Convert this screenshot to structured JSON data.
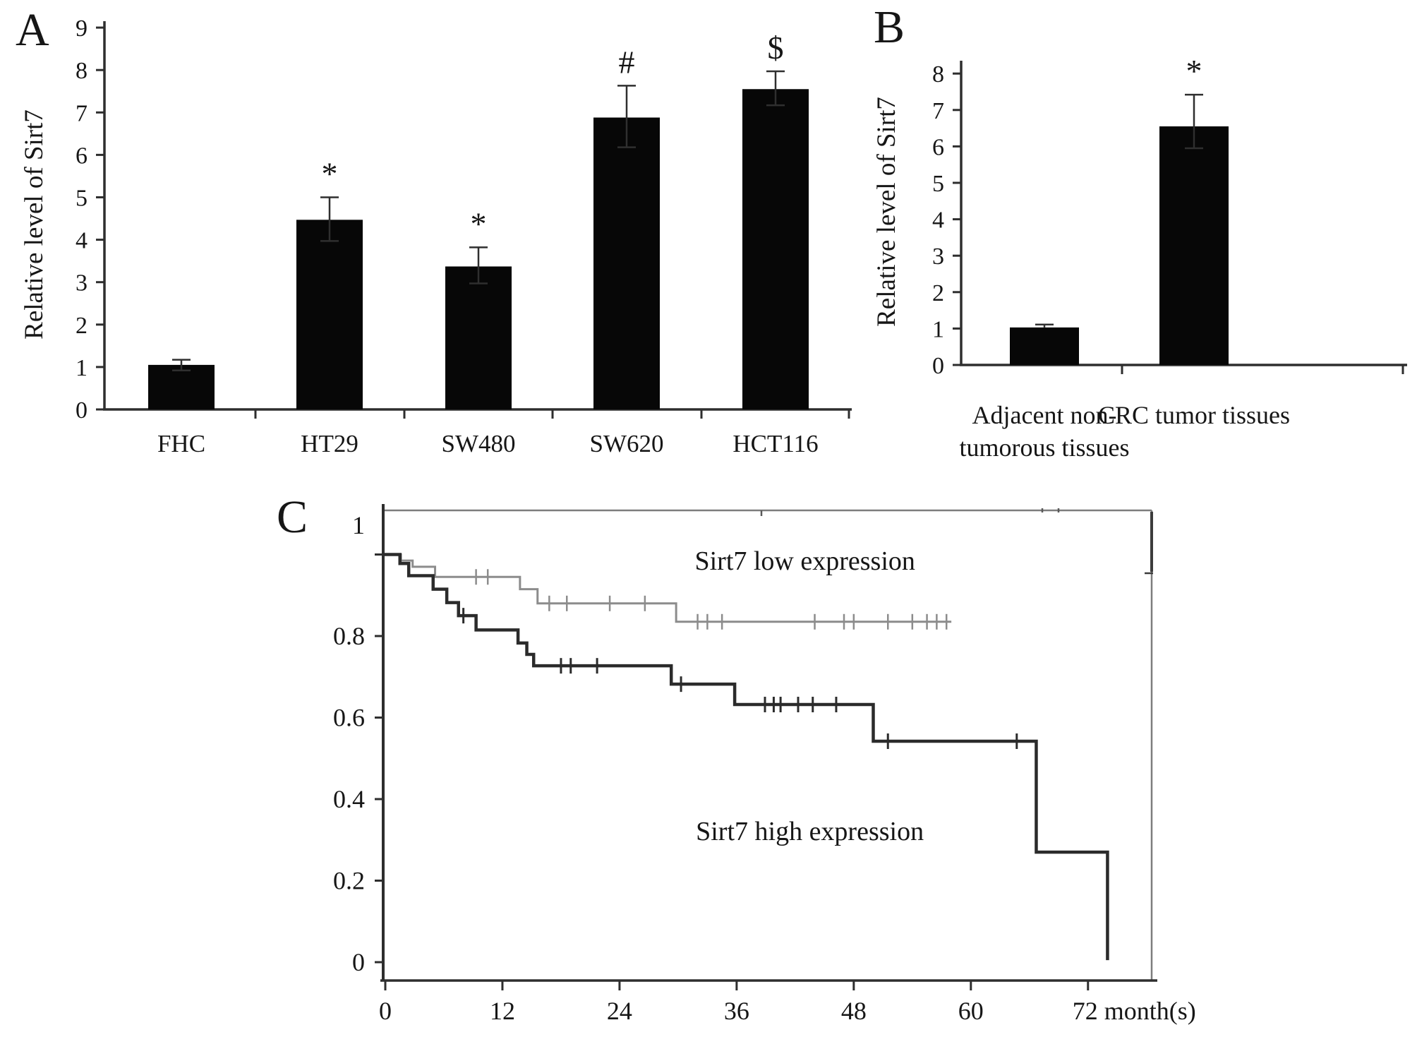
{
  "figure": {
    "panels": [
      {
        "id": "A",
        "label": "A"
      },
      {
        "id": "B",
        "label": "B"
      },
      {
        "id": "C",
        "label": "C"
      }
    ]
  },
  "colors": {
    "background": "#ffffff",
    "bar": "#070707",
    "axis": "#2e2e2e",
    "frame": "#7d7d7d",
    "error": "#2f2f2f",
    "text": "#161616",
    "low_curve": "#8c8c8c",
    "high_curve": "#2b2b2b"
  },
  "chart_data": [
    {
      "id": "panel-a",
      "type": "bar",
      "title": "",
      "xlabel": "",
      "ylabel": "Relative level of Sirt7",
      "categories": [
        "FHC",
        "HT29",
        "SW480",
        "SW620",
        "HCT116"
      ],
      "values": [
        1.05,
        4.47,
        3.37,
        6.88,
        7.55
      ],
      "errors_up": [
        0.12,
        0.53,
        0.45,
        0.75,
        0.42
      ],
      "errors_down": [
        0.13,
        0.5,
        0.4,
        0.7,
        0.38
      ],
      "annotations": [
        "",
        "*",
        "*",
        "#",
        "$"
      ],
      "ylim": [
        0,
        9
      ],
      "yticks": [
        0,
        1,
        2,
        3,
        4,
        5,
        6,
        7,
        8,
        9
      ],
      "grid": false,
      "legend": "none"
    },
    {
      "id": "panel-b",
      "type": "bar",
      "title": "",
      "xlabel": "",
      "ylabel": "Relative level of Sirt7",
      "categories": [
        "Adjacent non-\ntumorous tissues",
        "CRC tumor tissues"
      ],
      "values": [
        1.03,
        6.55
      ],
      "errors_up": [
        0.08,
        0.87
      ],
      "errors_down": [
        0,
        0.6
      ],
      "annotations": [
        "",
        "*"
      ],
      "ylim": [
        0,
        8
      ],
      "yticks": [
        0,
        1,
        2,
        3,
        4,
        5,
        6,
        7,
        8
      ],
      "grid": false,
      "legend": "none"
    },
    {
      "id": "panel-c",
      "type": "line",
      "subtype": "kaplan-meier",
      "title": "",
      "xlabel": "month(s)",
      "xticks": [
        0,
        12,
        24,
        36,
        48,
        60,
        72
      ],
      "xlim": [
        0,
        78
      ],
      "ylim": [
        0,
        1
      ],
      "yticks": [
        0,
        0.2,
        0.4,
        0.6,
        0.8,
        1
      ],
      "grid": false,
      "legend": "inline-labels",
      "series": [
        {
          "name": "Sirt7 low expression",
          "steps": [
            [
              0,
              1
            ],
            [
              1.6,
              0.985
            ],
            [
              2.8,
              0.97
            ],
            [
              5.1,
              0.945
            ],
            [
              13.8,
              0.915
            ],
            [
              15.6,
              0.88
            ],
            [
              29.8,
              0.835
            ]
          ],
          "end_month": 58,
          "censors": [
            [
              9.3,
              0.945
            ],
            [
              10.5,
              0.945
            ],
            [
              16.8,
              0.88
            ],
            [
              18.6,
              0.88
            ],
            [
              23,
              0.88
            ],
            [
              26.6,
              0.88
            ],
            [
              32,
              0.835
            ],
            [
              33,
              0.835
            ],
            [
              34.5,
              0.835
            ],
            [
              44,
              0.835
            ],
            [
              47,
              0.835
            ],
            [
              48,
              0.835
            ],
            [
              51.5,
              0.835
            ],
            [
              54,
              0.835
            ],
            [
              55.5,
              0.835
            ],
            [
              56.5,
              0.835
            ],
            [
              57.5,
              0.835
            ]
          ],
          "label_pos": {
            "month": 43,
            "value": 0.963
          }
        },
        {
          "name": "Sirt7 high expression",
          "steps": [
            [
              0,
              1
            ],
            [
              1.5,
              0.978
            ],
            [
              2.4,
              0.948
            ],
            [
              4.9,
              0.915
            ],
            [
              6.3,
              0.882
            ],
            [
              7.5,
              0.85
            ],
            [
              9.3,
              0.815
            ],
            [
              13.6,
              0.783
            ],
            [
              14.5,
              0.755
            ],
            [
              15.2,
              0.727
            ],
            [
              29.3,
              0.682
            ],
            [
              35.8,
              0.632
            ],
            [
              50,
              0.542
            ],
            [
              66.7,
              0.27
            ],
            [
              74,
              0.005
            ]
          ],
          "end_month": 74,
          "censors": [
            [
              8,
              0.85
            ],
            [
              18,
              0.727
            ],
            [
              19,
              0.727
            ],
            [
              21.7,
              0.727
            ],
            [
              30.3,
              0.682
            ],
            [
              38.9,
              0.632
            ],
            [
              39.8,
              0.632
            ],
            [
              40.5,
              0.632
            ],
            [
              42.3,
              0.632
            ],
            [
              43.8,
              0.632
            ],
            [
              46.2,
              0.632
            ],
            [
              51.5,
              0.542
            ],
            [
              64.7,
              0.542
            ]
          ],
          "label_pos": {
            "month": 43.5,
            "value": 0.3
          }
        }
      ]
    }
  ]
}
